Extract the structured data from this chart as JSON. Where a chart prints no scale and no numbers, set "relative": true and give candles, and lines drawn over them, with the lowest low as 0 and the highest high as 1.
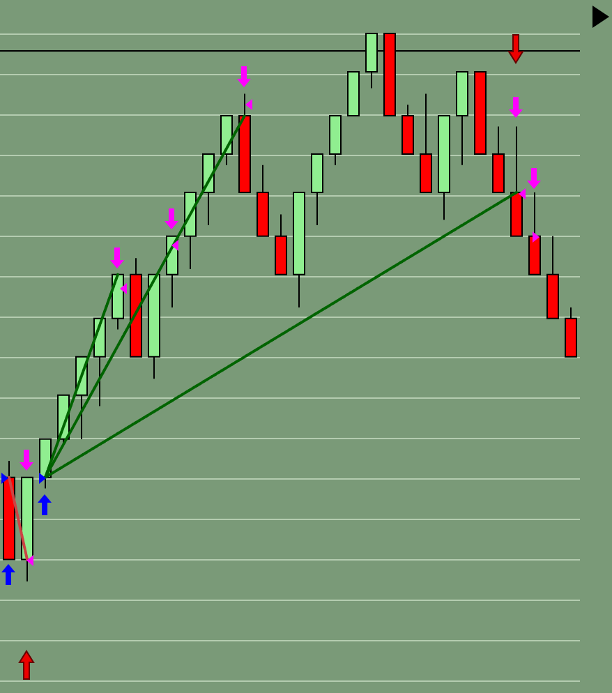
{
  "chart_data": {
    "type": "candlestick",
    "relative": true,
    "grid": "y",
    "marker": "none",
    "categories": [
      null,
      null,
      null,
      null,
      null,
      null,
      null,
      null,
      null,
      null,
      null,
      null,
      null,
      null,
      null,
      null,
      null,
      null,
      null,
      null,
      null,
      null,
      null,
      null,
      null,
      null,
      null,
      null,
      null,
      null,
      null,
      null
    ],
    "ohlc": [
      [
        0.19,
        0.22,
        0.04,
        0.04
      ],
      [
        0.04,
        0.19,
        0,
        0.19
      ],
      [
        0.19,
        0.26,
        0.17,
        0.26
      ],
      [
        0.26,
        0.34,
        0.25,
        0.34
      ],
      [
        0.34,
        0.41,
        0.26,
        0.41
      ],
      [
        0.41,
        0.48,
        0.32,
        0.48
      ],
      [
        0.48,
        0.56,
        0.46,
        0.56
      ],
      [
        0.56,
        0.59,
        0.41,
        0.41
      ],
      [
        0.41,
        0.56,
        0.37,
        0.56
      ],
      [
        0.56,
        0.63,
        0.5,
        0.63
      ],
      [
        0.63,
        0.71,
        0.57,
        0.71
      ],
      [
        0.71,
        0.78,
        0.65,
        0.78
      ],
      [
        0.78,
        0.85,
        0.76,
        0.85
      ],
      [
        0.85,
        0.89,
        0.71,
        0.71
      ],
      [
        0.71,
        0.76,
        0.63,
        0.63
      ],
      [
        0.63,
        0.67,
        0.56,
        0.56
      ],
      [
        0.56,
        0.71,
        0.5,
        0.71
      ],
      [
        0.71,
        0.78,
        0.65,
        0.78
      ],
      [
        0.78,
        0.85,
        0.76,
        0.85
      ],
      [
        0.85,
        0.93,
        0.85,
        0.93
      ],
      [
        0.93,
        1,
        0.9,
        1
      ],
      [
        1,
        1,
        0.85,
        0.85
      ],
      [
        0.85,
        0.87,
        0.78,
        0.78
      ],
      [
        0.78,
        0.89,
        0.71,
        0.71
      ],
      [
        0.71,
        0.85,
        0.66,
        0.85
      ],
      [
        0.85,
        0.93,
        0.76,
        0.93
      ],
      [
        0.93,
        0.93,
        0.78,
        0.78
      ],
      [
        0.78,
        0.83,
        0.71,
        0.71
      ],
      [
        0.71,
        0.83,
        0.63,
        0.63
      ],
      [
        0.63,
        0.71,
        0.56,
        0.56
      ],
      [
        0.56,
        0.63,
        0.48,
        0.48
      ],
      [
        0.48,
        0.5,
        0.41,
        0.41
      ]
    ],
    "colors": [
      "#ff0000",
      "#90ee90",
      "#90ee90",
      "#90ee90",
      "#90ee90",
      "#90ee90",
      "#90ee90",
      "#ff0000",
      "#90ee90",
      "#90ee90",
      "#90ee90",
      "#90ee90",
      "#90ee90",
      "#ff0000",
      "#ff0000",
      "#ff0000",
      "#90ee90",
      "#90ee90",
      "#90ee90",
      "#90ee90",
      "#90ee90",
      "#ff0000",
      "#ff0000",
      "#ff0000",
      "#90ee90",
      "#90ee90",
      "#ff0000",
      "#ff0000",
      "#ff0000",
      "#ff0000",
      "#ff0000",
      "#ff0000"
    ],
    "series": [
      {
        "type": "line",
        "color": "#006400",
        "line_style": "dotted",
        "values": [
          null,
          null,
          0.19,
          null,
          null,
          null,
          null,
          null,
          null,
          null,
          null,
          null,
          null,
          null,
          null,
          null,
          null,
          null,
          null,
          null,
          null,
          null,
          null,
          null,
          null,
          null,
          null,
          null,
          0.71,
          null,
          null,
          null
        ]
      },
      {
        "type": "line",
        "color": "#006400",
        "line_style": "dotted",
        "values": [
          null,
          null,
          0.19,
          null,
          null,
          null,
          null,
          null,
          null,
          null,
          null,
          null,
          null,
          0.85,
          null,
          null,
          null,
          null,
          null,
          null,
          null,
          null,
          null,
          null,
          null,
          null,
          null,
          null,
          null,
          null,
          null,
          null
        ]
      },
      {
        "type": "line",
        "color": "#006400",
        "line_style": "dotted",
        "values": [
          null,
          null,
          0.19,
          null,
          null,
          null,
          0.56,
          null,
          null,
          null,
          null,
          null,
          null,
          null,
          null,
          null,
          null,
          null,
          null,
          null,
          null,
          null,
          null,
          null,
          null,
          null,
          null,
          null,
          null,
          null,
          null,
          null
        ]
      },
      {
        "type": "line",
        "color": "#cc4444",
        "line_style": "dotted",
        "values": [
          0.19,
          0.04,
          null,
          null,
          null,
          null,
          null,
          null,
          null,
          null,
          null,
          null,
          null,
          null,
          null,
          null,
          null,
          null,
          null,
          null,
          null,
          null,
          null,
          null,
          null,
          null,
          null,
          null,
          null,
          null,
          null,
          null
        ]
      }
    ],
    "ref_lines": [
      {
        "axis": "y",
        "value": 0.97,
        "color": "#000000",
        "line_style": "solid"
      }
    ]
  }
}
